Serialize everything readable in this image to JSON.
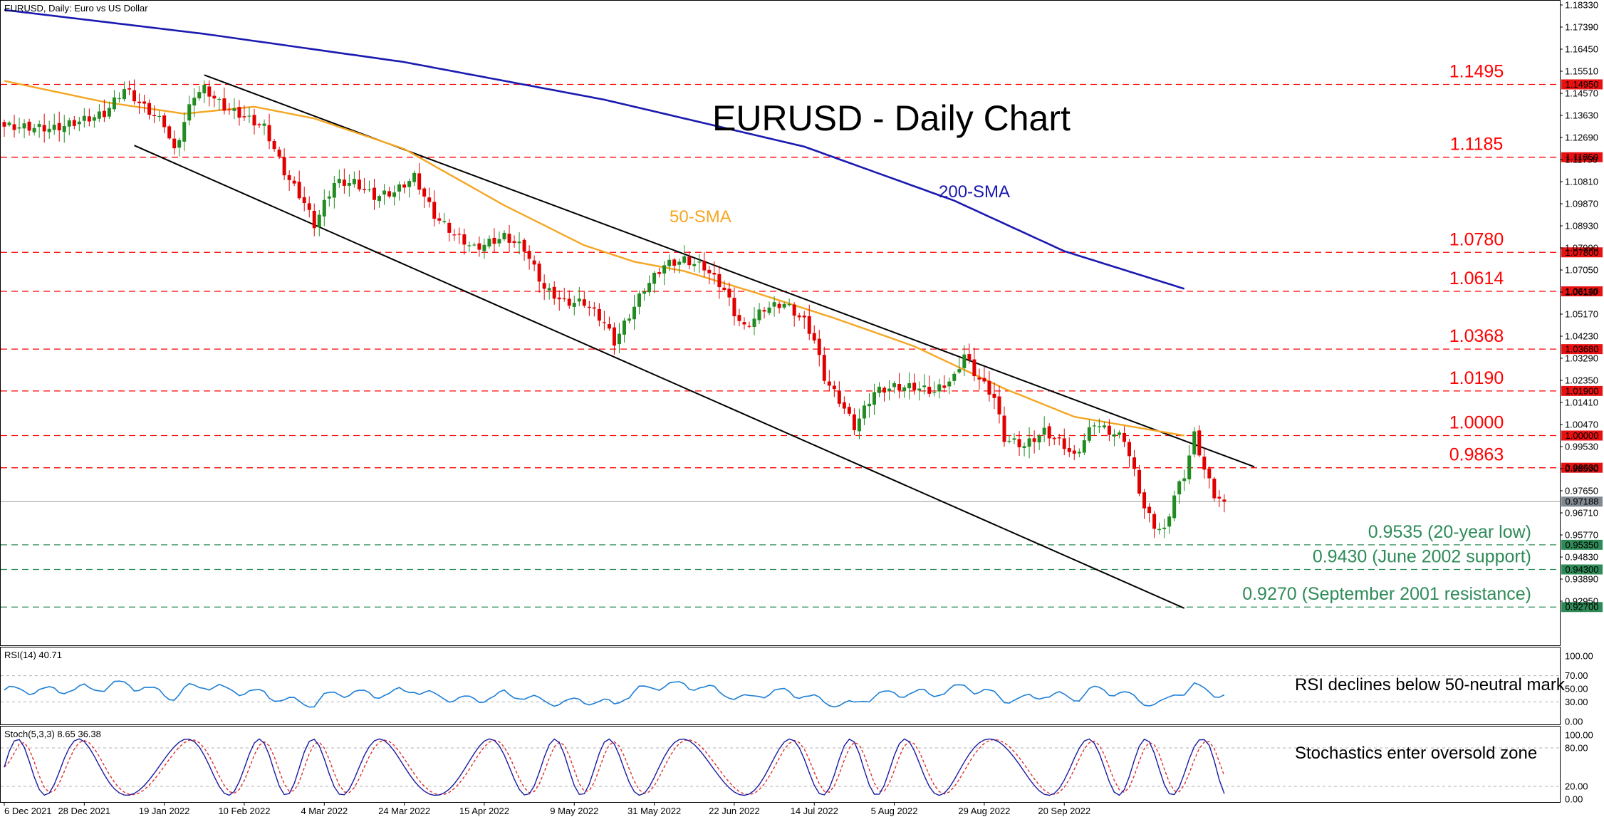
{
  "header": {
    "main": "EURUSD, Daily:  Euro vs US Dollar",
    "rsi": "RSI(14) 40.71",
    "stoch": "Stoch(5,3,3) 8.65 36.38"
  },
  "chart_data": {
    "type": "candlestick",
    "title": "EURUSD - Daily Chart",
    "price_axis_ticks": [
      "1.18330",
      "1.17390",
      "1.16450",
      "1.15510",
      "1.14570",
      "1.13630",
      "1.12690",
      "1.11750",
      "1.10810",
      "1.09870",
      "1.08930",
      "1.07990",
      "1.07050",
      "1.06110",
      "1.05170",
      "1.04230",
      "1.03290",
      "1.02350",
      "1.01410",
      "1.00470",
      "0.99530",
      "0.98590",
      "0.97650",
      "0.96710",
      "0.95770",
      "0.94830",
      "0.93890",
      "0.92950"
    ],
    "date_labels": [
      "6 Dec 2021",
      "28 Dec 2021",
      "19 Jan 2022",
      "10 Feb 2022",
      "4 Mar 2022",
      "24 Mar 2022",
      "15 Apr 2022",
      "9 May 2022",
      "31 May 2022",
      "22 Jun 2022",
      "14 Jul 2022",
      "5 Aug 2022",
      "29 Aug 2022",
      "20 Sep 2022"
    ],
    "date_label_index": [
      0,
      16,
      32,
      48,
      64,
      80,
      96,
      114,
      130,
      146,
      162,
      178,
      196,
      212
    ],
    "current_price": "0.97188",
    "levels": [
      {
        "value": 1.1495,
        "label": "1.1495",
        "tag": "1.14950",
        "color": "#ff0000",
        "group": "resistance"
      },
      {
        "value": 1.1185,
        "label": "1.1185",
        "tag": "1.11850",
        "color": "#ff0000",
        "group": "resistance"
      },
      {
        "value": 1.078,
        "label": "1.0780",
        "tag": "1.07800",
        "color": "#ff0000",
        "group": "resistance"
      },
      {
        "value": 1.0614,
        "label": "1.0614",
        "tag": "1.06140",
        "color": "#ff0000",
        "group": "resistance"
      },
      {
        "value": 1.0368,
        "label": "1.0368",
        "tag": "1.03680",
        "color": "#ff0000",
        "group": "resistance"
      },
      {
        "value": 1.019,
        "label": "1.0190",
        "tag": "1.01900",
        "color": "#ff0000",
        "group": "resistance"
      },
      {
        "value": 1.0,
        "label": "1.0000",
        "tag": "1.00000",
        "color": "#ff0000",
        "group": "resistance"
      },
      {
        "value": 0.9863,
        "label": "0.9863",
        "tag": "0.98630",
        "color": "#ff0000",
        "group": "resistance"
      },
      {
        "value": 0.9535,
        "label": "0.9535 (20-year low)",
        "tag": "0.95350",
        "color": "#2e8b57",
        "group": "support"
      },
      {
        "value": 0.943,
        "label": "0.9430 (June 2002 support)",
        "tag": "0.94300",
        "color": "#2e8b57",
        "group": "support"
      },
      {
        "value": 0.927,
        "label": "0.9270 (September 2001 resistance)",
        "tag": "0.92700",
        "color": "#2e8b57",
        "group": "support"
      }
    ],
    "sma_labels": {
      "sma50": "50-SMA",
      "sma200": "200-SMA"
    },
    "sma200_keypoints": [
      [
        0,
        1.1812
      ],
      [
        40,
        1.171
      ],
      [
        80,
        1.159
      ],
      [
        120,
        1.143
      ],
      [
        160,
        1.123
      ],
      [
        190,
        1.1
      ],
      [
        212,
        1.0785
      ],
      [
        236,
        1.0625
      ]
    ],
    "sma50_keypoints": [
      [
        0,
        1.151
      ],
      [
        20,
        1.142
      ],
      [
        36,
        1.137
      ],
      [
        50,
        1.14
      ],
      [
        62,
        1.135
      ],
      [
        80,
        1.122
      ],
      [
        100,
        1.098
      ],
      [
        116,
        1.081
      ],
      [
        126,
        1.074
      ],
      [
        136,
        1.07
      ],
      [
        150,
        1.061
      ],
      [
        166,
        1.05
      ],
      [
        182,
        1.038
      ],
      [
        200,
        1.02
      ],
      [
        214,
        1.008
      ],
      [
        236,
        1.0
      ]
    ],
    "channel": {
      "upper": [
        [
          40,
          1.1535
        ],
        [
          250,
          0.9867
        ]
      ],
      "lower": [
        [
          26,
          1.1235
        ],
        [
          236,
          0.9265
        ]
      ]
    },
    "closes_keypoints": [
      [
        0,
        1.1315
      ],
      [
        10,
        1.1305
      ],
      [
        20,
        1.1368
      ],
      [
        24,
        1.1475
      ],
      [
        28,
        1.1395
      ],
      [
        32,
        1.1325
      ],
      [
        34,
        1.1205
      ],
      [
        36,
        1.1335
      ],
      [
        38,
        1.145
      ],
      [
        40,
        1.1475
      ],
      [
        44,
        1.1395
      ],
      [
        48,
        1.1355
      ],
      [
        52,
        1.131
      ],
      [
        54,
        1.122
      ],
      [
        56,
        1.112
      ],
      [
        60,
        1.099
      ],
      [
        62,
        1.0895
      ],
      [
        66,
        1.1075
      ],
      [
        70,
        1.1075
      ],
      [
        74,
        1.1015
      ],
      [
        78,
        1.1035
      ],
      [
        82,
        1.11
      ],
      [
        86,
        1.0935
      ],
      [
        90,
        1.0855
      ],
      [
        94,
        1.0795
      ],
      [
        100,
        1.0845
      ],
      [
        104,
        1.0795
      ],
      [
        108,
        1.0625
      ],
      [
        112,
        1.0565
      ],
      [
        116,
        1.0565
      ],
      [
        120,
        1.048
      ],
      [
        122,
        1.0395
      ],
      [
        128,
        1.0625
      ],
      [
        132,
        1.0725
      ],
      [
        136,
        1.0745
      ],
      [
        140,
        1.0715
      ],
      [
        144,
        1.062
      ],
      [
        146,
        1.052
      ],
      [
        148,
        1.0455
      ],
      [
        152,
        1.054
      ],
      [
        156,
        1.056
      ],
      [
        160,
        1.0485
      ],
      [
        162,
        1.0405
      ],
      [
        164,
        1.0245
      ],
      [
        168,
        1.0115
      ],
      [
        170,
        1.0035
      ],
      [
        174,
        1.0185
      ],
      [
        178,
        1.0205
      ],
      [
        182,
        1.0205
      ],
      [
        186,
        1.0185
      ],
      [
        190,
        1.0245
      ],
      [
        192,
        1.0345
      ],
      [
        194,
        1.0265
      ],
      [
        198,
        1.016
      ],
      [
        200,
        0.9985
      ],
      [
        204,
        0.9955
      ],
      [
        208,
        1.0015
      ],
      [
        212,
        0.9955
      ],
      [
        214,
        0.9905
      ],
      [
        218,
        1.0055
      ],
      [
        220,
        1.0025
      ],
      [
        224,
        0.9985
      ],
      [
        226,
        0.984
      ],
      [
        228,
        0.969
      ],
      [
        230,
        0.9615
      ],
      [
        232,
        0.959
      ],
      [
        234,
        0.9745
      ],
      [
        236,
        0.983
      ],
      [
        238,
        1.0
      ],
      [
        240,
        0.9855
      ],
      [
        242,
        0.9745
      ],
      [
        244,
        0.9719
      ]
    ],
    "rsi": {
      "label": "RSI(14)",
      "value": 40.71,
      "ticks": [
        "100.00",
        "70.00",
        "50.00",
        "30.00",
        "0.00"
      ],
      "reference_lines": [
        30,
        70
      ]
    },
    "stoch": {
      "label": "Stoch(5,3,3)",
      "main": 8.65,
      "signal": 36.38,
      "ticks": [
        "100.00",
        "80.00",
        "20.00",
        "0.00"
      ],
      "reference_lines": [
        20,
        80
      ]
    },
    "annotations": {
      "rsi": "RSI declines below 50-neutral mark",
      "stoch": "Stochastics enter oversold zone"
    },
    "colors": {
      "bull": "#228b22",
      "bear": "#e00000",
      "sma50": "#f5a623",
      "sma200": "#1a1ab0",
      "channel": "#000000",
      "rsi": "#1e7fd6",
      "stoch_main": "#1a1aa0",
      "stoch_signal": "#e03030"
    }
  }
}
